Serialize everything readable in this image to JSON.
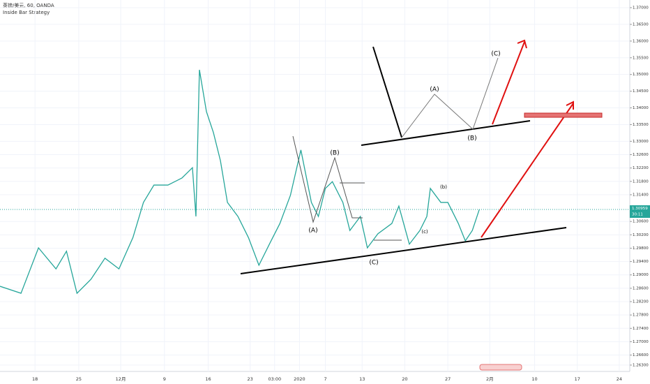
{
  "chart_data": {
    "type": "line",
    "title": "英镑/美元, 60, OANDA",
    "subtitle": "Inside Bar Strategy",
    "x": [
      0,
      6,
      11,
      16,
      19,
      22,
      26,
      30,
      34,
      38,
      41,
      44,
      48,
      52,
      55,
      56,
      57,
      59,
      61,
      63,
      65,
      68,
      71,
      74,
      77,
      80,
      83,
      86,
      89,
      91,
      93,
      95,
      98,
      100,
      103,
      105,
      108,
      112,
      114,
      117,
      120,
      122,
      123,
      126,
      128,
      131,
      133,
      135,
      137
    ],
    "series": [
      {
        "name": "GBP/USD",
        "color": "#26a69a",
        "values": [
          1.2866,
          1.2845,
          1.2981,
          1.2918,
          1.2971,
          1.2845,
          1.2887,
          1.295,
          1.2918,
          1.3012,
          1.3117,
          1.3169,
          1.3169,
          1.319,
          1.3221,
          1.3075,
          1.3514,
          1.3389,
          1.3326,
          1.3242,
          1.3117,
          1.3075,
          1.3012,
          1.2929,
          1.2992,
          1.3054,
          1.3138,
          1.3274,
          1.3117,
          1.3075,
          1.3159,
          1.3179,
          1.3117,
          1.3033,
          1.3075,
          1.2981,
          1.3023,
          1.3054,
          1.3106,
          1.2992,
          1.3033,
          1.3075,
          1.3159,
          1.3117,
          1.3117,
          1.3054,
          1.3002,
          1.3033,
          1.3096
        ]
      }
    ],
    "xlim": [
      0,
      180
    ],
    "xticks": [
      {
        "value": 10,
        "label": "18"
      },
      {
        "value": 22.5,
        "label": "25"
      },
      {
        "value": 34.5,
        "label": "12月"
      },
      {
        "value": 47,
        "label": "9"
      },
      {
        "value": 59.5,
        "label": "16"
      },
      {
        "value": 71.5,
        "label": "23"
      },
      {
        "value": 78.5,
        "label": "03:00"
      },
      {
        "value": 85.6,
        "label": "2020"
      },
      {
        "value": 93,
        "label": "7"
      },
      {
        "value": 103.5,
        "label": "13"
      },
      {
        "value": 115.7,
        "label": "20"
      },
      {
        "value": 128,
        "label": "27"
      },
      {
        "value": 140,
        "label": "2月"
      },
      {
        "value": 152.8,
        "label": "10"
      },
      {
        "value": 165,
        "label": "17"
      },
      {
        "value": 177,
        "label": "24"
      }
    ],
    "ylim": [
      1.2611,
      1.3723
    ],
    "yticks": [
      {
        "value": 1.37,
        "label": "1.37000"
      },
      {
        "value": 1.365,
        "label": "1.36500"
      },
      {
        "value": 1.36,
        "label": "1.36000"
      },
      {
        "value": 1.355,
        "label": "1.35500"
      },
      {
        "value": 1.35,
        "label": "1.35000"
      },
      {
        "value": 1.345,
        "label": "1.34500"
      },
      {
        "value": 1.34,
        "label": "1.34000"
      },
      {
        "value": 1.335,
        "label": "1.33500"
      },
      {
        "value": 1.33,
        "label": "1.33000"
      },
      {
        "value": 1.326,
        "label": "1.32600"
      },
      {
        "value": 1.322,
        "label": "1.32200"
      },
      {
        "value": 1.318,
        "label": "1.31800"
      },
      {
        "value": 1.314,
        "label": "1.31400"
      },
      {
        "value": 1.306,
        "label": "1.30600"
      },
      {
        "value": 1.302,
        "label": "1.30200"
      },
      {
        "value": 1.298,
        "label": "1.29800"
      },
      {
        "value": 1.294,
        "label": "1.29400"
      },
      {
        "value": 1.29,
        "label": "1.29000"
      },
      {
        "value": 1.286,
        "label": "1.28600"
      },
      {
        "value": 1.282,
        "label": "1.28200"
      },
      {
        "value": 1.278,
        "label": "1.27800"
      },
      {
        "value": 1.274,
        "label": "1.27400"
      },
      {
        "value": 1.27,
        "label": "1.27000"
      },
      {
        "value": 1.266,
        "label": "1.26600"
      },
      {
        "value": 1.263,
        "label": "1.26300"
      }
    ],
    "grid": true,
    "last_price": {
      "value": 1.30959,
      "label": "1.30959"
    },
    "countdown": "30:11",
    "annotations": [
      "(A)",
      "(B)",
      "(C)",
      "(A)",
      "(B)",
      "(C)",
      "(b)",
      "(c)"
    ]
  }
}
